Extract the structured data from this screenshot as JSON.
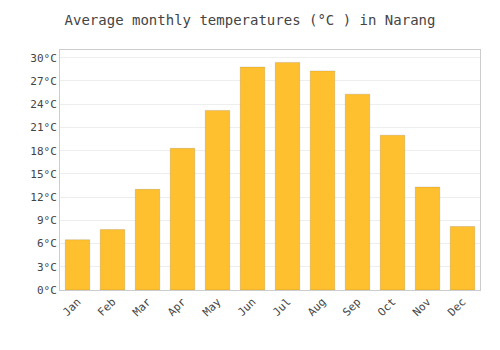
{
  "chart_data": {
    "type": "bar",
    "title": "Average monthly temperatures (°C ) in Narang",
    "categories": [
      "Jan",
      "Feb",
      "Mar",
      "Apr",
      "May",
      "Jun",
      "Jul",
      "Aug",
      "Sep",
      "Oct",
      "Nov",
      "Dec"
    ],
    "values": [
      6.5,
      7.8,
      13.0,
      18.3,
      23.2,
      28.8,
      29.4,
      28.3,
      25.3,
      20.0,
      13.3,
      8.2
    ],
    "color": "#FFC030",
    "ylim": [
      0,
      31
    ],
    "yticks": [
      {
        "value": 0,
        "label": "0°C"
      },
      {
        "value": 3,
        "label": "3°C"
      },
      {
        "value": 6,
        "label": "6°C"
      },
      {
        "value": 9,
        "label": "9°C"
      },
      {
        "value": 12,
        "label": "12°C"
      },
      {
        "value": 15,
        "label": "15°C"
      },
      {
        "value": 18,
        "label": "18°C"
      },
      {
        "value": 21,
        "label": "21°C"
      },
      {
        "value": 24,
        "label": "24°C"
      },
      {
        "value": 27,
        "label": "27°C"
      },
      {
        "value": 30,
        "label": "30°C"
      }
    ],
    "grid": true
  }
}
